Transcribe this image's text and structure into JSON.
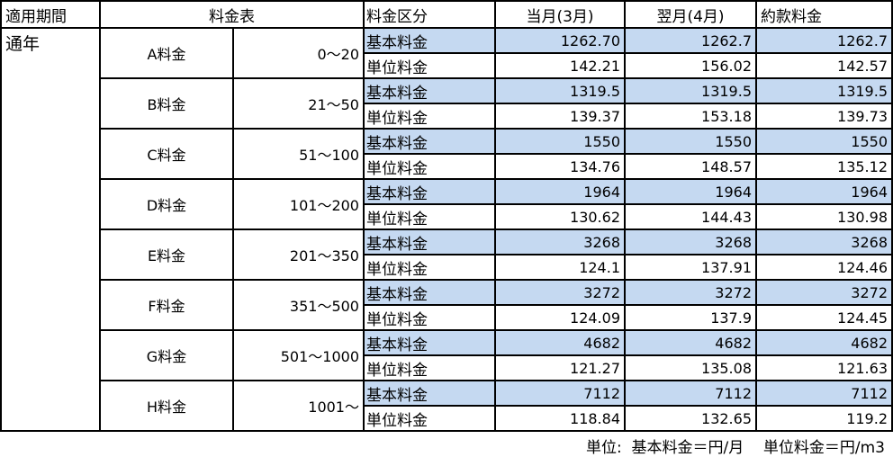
{
  "header": {
    "period": "適用期間",
    "table": "料金表",
    "category": "料金区分",
    "current_month": "当月(3月)",
    "next_month": "翌月(4月)",
    "contract": "約款料金"
  },
  "period_value": "通年",
  "colors": {
    "highlight": "#c5d9f1",
    "border": "#000000"
  },
  "groups": [
    {
      "name": "A料金",
      "range": "0～20",
      "basic": [
        "1262.70",
        "1262.7",
        "1262.7"
      ],
      "unit": [
        "142.21",
        "156.02",
        "142.57"
      ]
    },
    {
      "name": "B料金",
      "range": "21～50",
      "basic": [
        "1319.5",
        "1319.5",
        "1319.5"
      ],
      "unit": [
        "139.37",
        "153.18",
        "139.73"
      ]
    },
    {
      "name": "C料金",
      "range": "51～100",
      "basic": [
        "1550",
        "1550",
        "1550"
      ],
      "unit": [
        "134.76",
        "148.57",
        "135.12"
      ]
    },
    {
      "name": "D料金",
      "range": "101～200",
      "basic": [
        "1964",
        "1964",
        "1964"
      ],
      "unit": [
        "130.62",
        "144.43",
        "130.98"
      ]
    },
    {
      "name": "E料金",
      "range": "201～350",
      "basic": [
        "3268",
        "3268",
        "3268"
      ],
      "unit": [
        "124.1",
        "137.91",
        "124.46"
      ]
    },
    {
      "name": "F料金",
      "range": "351～500",
      "basic": [
        "3272",
        "3272",
        "3272"
      ],
      "unit": [
        "124.09",
        "137.9",
        "124.45"
      ]
    },
    {
      "name": "G料金",
      "range": "501～1000",
      "basic": [
        "4682",
        "4682",
        "4682"
      ],
      "unit": [
        "121.27",
        "135.08",
        "121.63"
      ]
    },
    {
      "name": "H料金",
      "range": "1001～",
      "basic": [
        "7112",
        "7112",
        "7112"
      ],
      "unit": [
        "118.84",
        "132.65",
        "119.2"
      ]
    }
  ],
  "labels": {
    "basic": "基本料金",
    "unit": "単位料金"
  },
  "note": "単位:  基本料金＝円/月    単位料金＝円/m3"
}
